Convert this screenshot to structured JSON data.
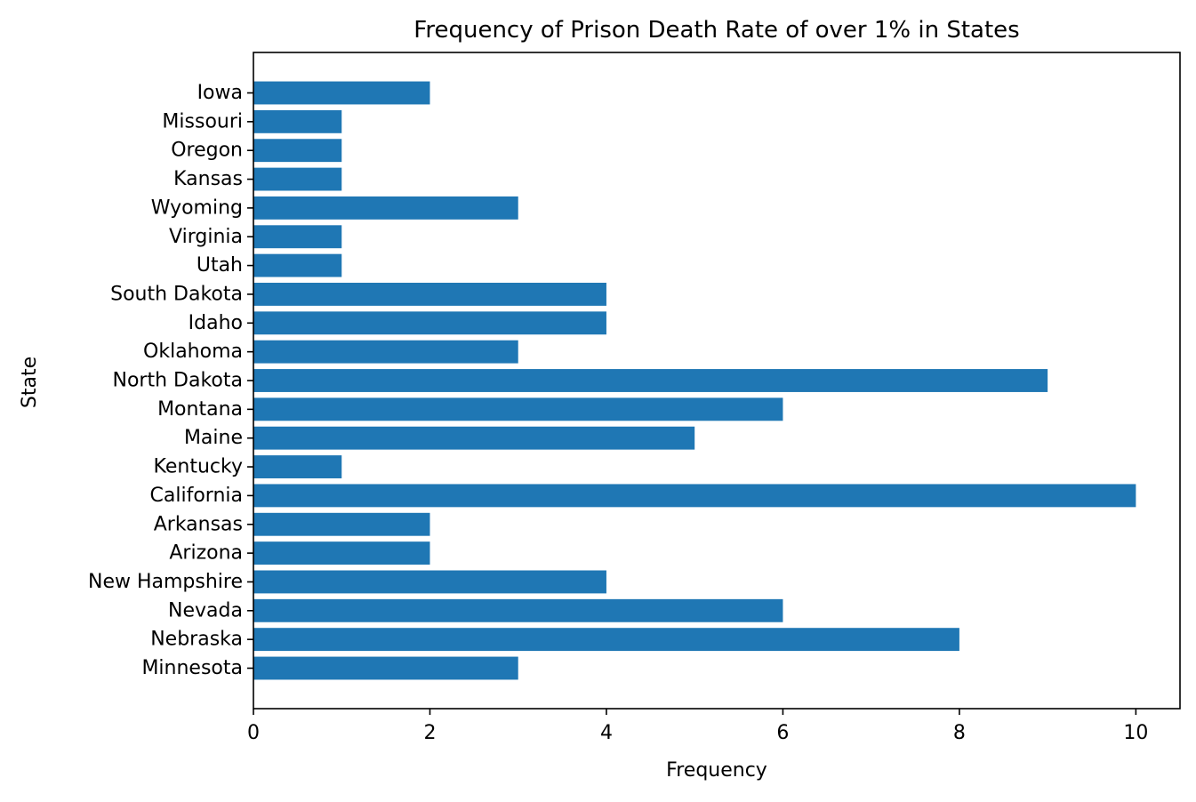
{
  "chart_data": {
    "type": "bar",
    "orientation": "horizontal",
    "title": "Frequency of Prison Death Rate of over 1% in States",
    "xlabel": "Frequency",
    "ylabel": "State",
    "categories": [
      "Minnesota",
      "Nebraska",
      "Nevada",
      "New Hampshire",
      "Arizona",
      "Arkansas",
      "California",
      "Kentucky",
      "Maine",
      "Montana",
      "North Dakota",
      "Oklahoma",
      "Idaho",
      "South Dakota",
      "Utah",
      "Virginia",
      "Wyoming",
      "Kansas",
      "Oregon",
      "Missouri",
      "Iowa"
    ],
    "values": [
      3,
      8,
      6,
      4,
      2,
      2,
      10,
      1,
      5,
      6,
      9,
      3,
      4,
      4,
      1,
      1,
      3,
      1,
      1,
      1,
      2
    ],
    "xlim": [
      0,
      10.5
    ],
    "xticks": [
      "0",
      "2",
      "4",
      "6",
      "8",
      "10"
    ],
    "grid": false,
    "bar_color": "#1f77b4"
  }
}
